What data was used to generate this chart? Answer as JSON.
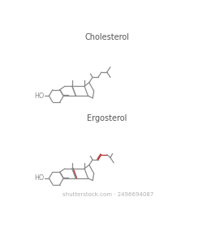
{
  "title1": "Cholesterol",
  "title2": "Ergosterol",
  "watermark": "shutterstock.com · 2496694087",
  "line_color": "#8a8a8a",
  "red_color": "#b03030",
  "title_color": "#555555",
  "watermark_color": "#b0b0b0",
  "bg_color": "#ffffff",
  "line_width": 0.9,
  "title_fontsize": 7.0,
  "watermark_fontsize": 5.0
}
